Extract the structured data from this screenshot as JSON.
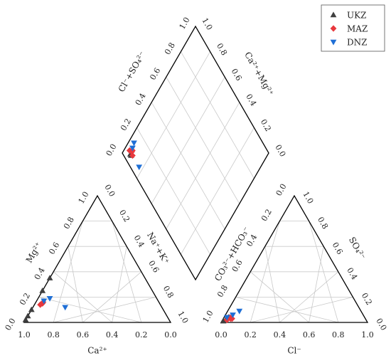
{
  "chart_data": {
    "type": "scatter",
    "subtype": "piper-diagram",
    "legend_placement": "top-right",
    "series": [
      {
        "name": "UKZ",
        "marker": "triangle-up",
        "color": "#3f3f3f"
      },
      {
        "name": "MAZ",
        "marker": "diamond",
        "color": "#e8383d"
      },
      {
        "name": "DNZ",
        "marker": "triangle-down",
        "color": "#1f6fd6"
      }
    ],
    "cation_triangle": {
      "axes": {
        "bottom": "Ca²⁺",
        "left": "Mg²⁺",
        "right": "Na⁺+K⁺"
      },
      "ticks": [
        "0.0",
        "0.2",
        "0.4",
        "0.6",
        "0.8",
        "1.0"
      ],
      "points": {
        "UKZ": [
          [
            0.98,
            0.02
          ],
          [
            0.95,
            0.05
          ],
          [
            0.9,
            0.1
          ],
          [
            0.75,
            0.25
          ],
          [
            0.65,
            0.35
          ]
        ],
        "MAZ": [
          [
            0.8,
            0.15
          ],
          [
            0.79,
            0.16
          ],
          [
            0.82,
            0.14
          ]
        ],
        "DNZ": [
          [
            0.78,
            0.17
          ],
          [
            0.73,
            0.19
          ],
          [
            0.66,
            0.12
          ]
        ]
      }
    },
    "anion_triangle": {
      "axes": {
        "bottom": "Cl⁻",
        "left": "CO₃²⁻+HCO₃⁻",
        "right": "SO₄²⁻"
      },
      "ticks": [
        "0.0",
        "0.2",
        "0.4",
        "0.6",
        "0.8",
        "1.0"
      ],
      "points": {
        "UKZ": [
          [
            0.01,
            0.01
          ],
          [
            0.02,
            0.03
          ],
          [
            0.03,
            0.04
          ]
        ],
        "MAZ": [
          [
            0.03,
            0.02
          ],
          [
            0.05,
            0.03
          ],
          [
            0.04,
            0.04
          ],
          [
            0.06,
            0.03
          ]
        ],
        "DNZ": [
          [
            0.02,
            0.04
          ],
          [
            0.05,
            0.06
          ],
          [
            0.08,
            0.09
          ]
        ]
      }
    },
    "diamond": {
      "axes": {
        "upper_left": "Cl⁻+SO₄²⁻",
        "upper_right": "Ca²⁺+Mg²⁺"
      },
      "ticks": [
        "0.0",
        "0.2",
        "0.4",
        "0.6",
        "0.8",
        "1.0"
      ],
      "points": {
        "UKZ": [
          [
            0.05,
            0.93
          ],
          [
            0.05,
            0.94
          ]
        ],
        "MAZ": [
          [
            0.07,
            0.94
          ],
          [
            0.06,
            0.92
          ],
          [
            0.08,
            0.94
          ],
          [
            0.06,
            0.96
          ]
        ],
        "DNZ": [
          [
            0.12,
            0.96
          ],
          [
            0.09,
            0.95
          ],
          [
            0.06,
            0.83
          ]
        ]
      }
    }
  }
}
